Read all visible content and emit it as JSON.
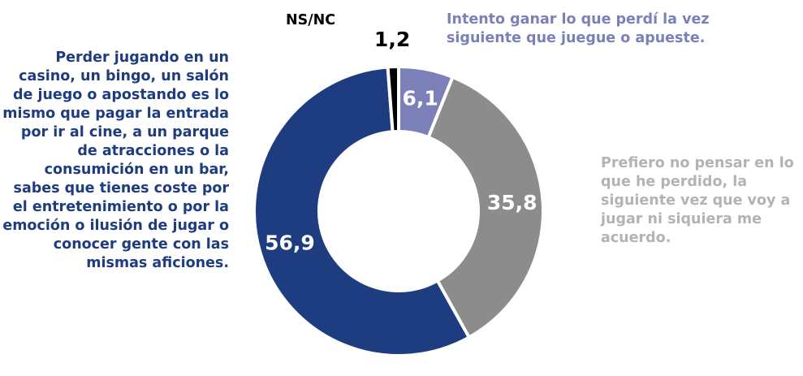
{
  "chart_data": {
    "type": "donut",
    "categories": [
      "Intento ganar lo que perdí la vez siguiente que juegue o apueste.",
      "Prefiero no pensar en lo que he perdido, la siguiente vez que voy a jugar ni siquiera me acuerdo.",
      "Perder jugando en un casino, un bingo, un salón de juego o apostando es lo mismo que pagar la entrada por ir al cine, a un parque de atracciones o la consumición en un bar, sabes que tienes coste por el entretenimiento o por la emoción o ilusión de jugar o conocer gente con las mismas aficiones.",
      "NS/NC"
    ],
    "values": [
      6.1,
      35.8,
      56.9,
      1.2
    ],
    "value_labels": [
      "6,1",
      "35,8",
      "56,9",
      "1,2"
    ],
    "colors": [
      "#7b80b8",
      "#8c8c8c",
      "#1e3c80",
      "#000000"
    ]
  }
}
